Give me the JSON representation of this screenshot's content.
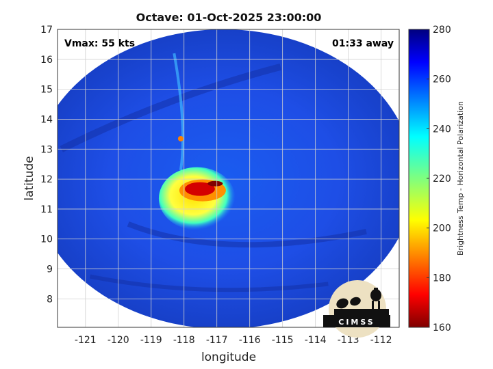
{
  "chart_data": {
    "type": "heatmap",
    "title": "Octave: 01-Oct-2025 23:00:00",
    "xlabel": "longitude",
    "ylabel": "latitude",
    "xlim": [
      -121.85,
      -111.45
    ],
    "ylim": [
      7.05,
      17.0
    ],
    "x_ticks": [
      -121,
      -120,
      -119,
      -118,
      -117,
      -116,
      -115,
      -114,
      -113,
      -112
    ],
    "y_ticks": [
      8,
      9,
      10,
      11,
      12,
      13,
      14,
      15,
      16,
      17
    ],
    "grid": true,
    "annotations": {
      "top_left": "Vmax: 55 kts",
      "top_right": "01:33 away"
    },
    "colorbar": {
      "label": "Brightness Temp - Horizontal Polarization",
      "range": [
        160,
        280
      ],
      "ticks": [
        160,
        180,
        200,
        220,
        240,
        260,
        280
      ],
      "colormap": "jet"
    },
    "swath": {
      "center_lon": -116.8,
      "center_lat": 12.0,
      "radius_lon": 5.8,
      "radius_lat": 5.0
    },
    "storm_core": {
      "center_lon": -117.6,
      "center_lat": 11.35,
      "min_temp": 165
    },
    "logo_text": "CIMSS"
  }
}
